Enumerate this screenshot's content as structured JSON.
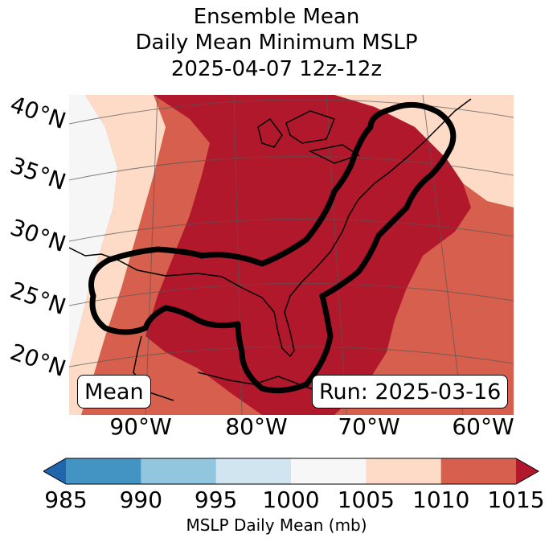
{
  "title": {
    "line1": "Ensemble Mean",
    "line2": "Daily Mean Minimum MSLP",
    "line3": "2025-04-07 12z-12z"
  },
  "map": {
    "lat_labels": [
      "40°N",
      "35°N",
      "30°N",
      "25°N",
      "20°N"
    ],
    "lon_labels": [
      "90°W",
      "80°W",
      "70°W",
      "60°W"
    ],
    "badge_left": "Mean",
    "badge_right": "Run: 2025-03-16",
    "region_fill_hex": {
      "west_land": "#f6f6f6",
      "outer_band": "#fddbc7",
      "mid_band": "#d6604d",
      "core": "#b2182b"
    }
  },
  "colorbar": {
    "label": "MSLP Daily Mean (mb)",
    "ticks": [
      "985",
      "990",
      "995",
      "1000",
      "1005",
      "1010",
      "1015"
    ],
    "colors": [
      "#2166ac",
      "#4393c3",
      "#92c5de",
      "#d1e5f0",
      "#f7f7f7",
      "#fddbc7",
      "#d6604d",
      "#b2182b"
    ]
  }
}
